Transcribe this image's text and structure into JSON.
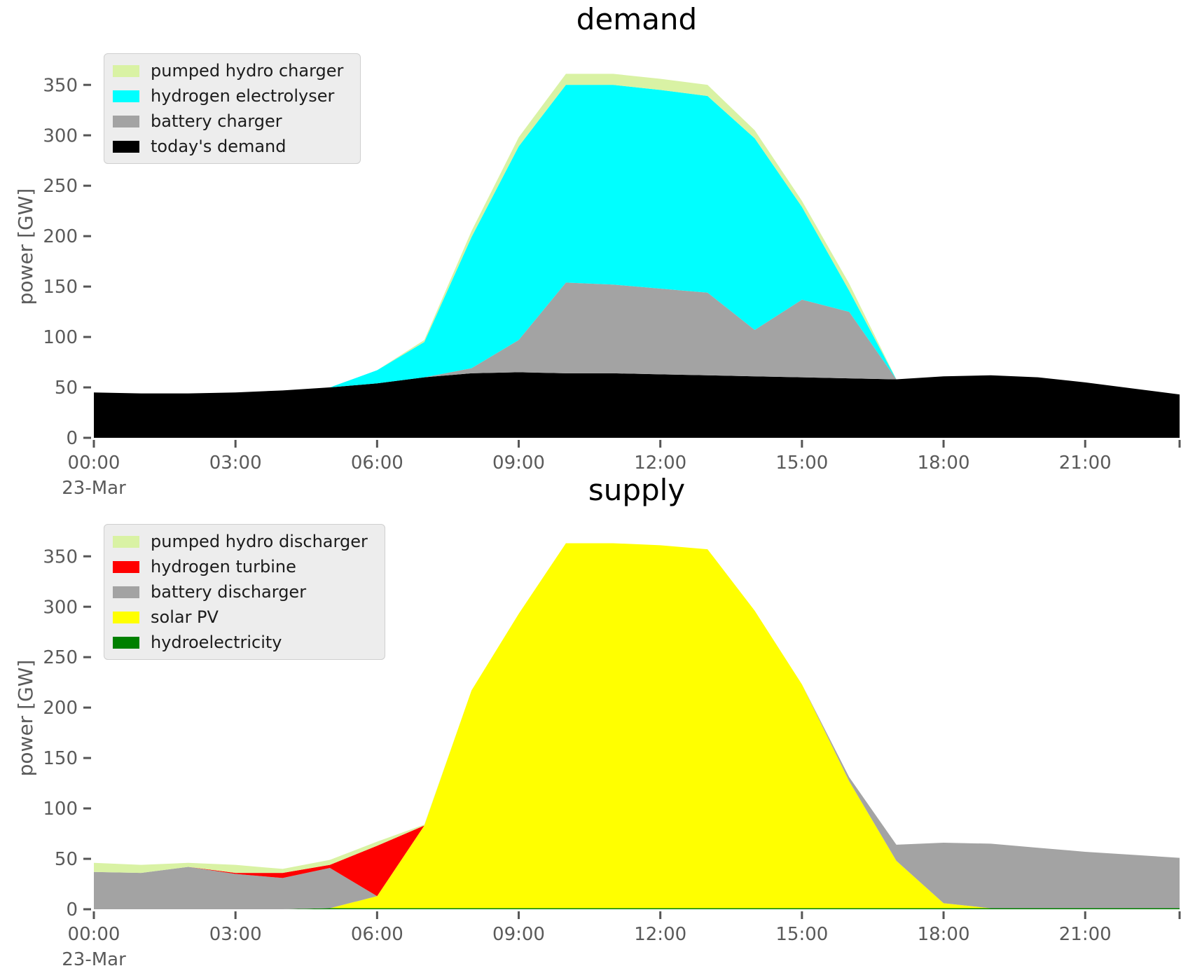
{
  "figure": {
    "background": "#ffffff",
    "text_color": "#5a5a5a",
    "title_color": "#000000"
  },
  "chart_data": [
    {
      "id": "demand",
      "type": "area",
      "title": "demand",
      "ylabel": "power [GW]",
      "x": [
        0,
        1,
        2,
        3,
        4,
        5,
        6,
        7,
        8,
        9,
        10,
        11,
        12,
        13,
        14,
        15,
        16,
        17,
        18,
        19,
        20,
        21,
        22,
        23
      ],
      "x_tick_hours": [
        0,
        3,
        6,
        9,
        12,
        15,
        18,
        21,
        23
      ],
      "x_tick_labels": [
        "00:00",
        "03:00",
        "06:00",
        "09:00",
        "12:00",
        "15:00",
        "18:00",
        "21:00",
        ""
      ],
      "x_date_label": "23-Mar",
      "y_ticks": [
        0,
        50,
        100,
        150,
        200,
        250,
        300,
        350
      ],
      "ylim": [
        0,
        380
      ],
      "grid": false,
      "legend_position": "upper left",
      "series": [
        {
          "name": "today's demand",
          "color": "#000000",
          "values": [
            45,
            44,
            44,
            45,
            47,
            50,
            54,
            60,
            64,
            65,
            64,
            64,
            63,
            62,
            61,
            60,
            59,
            58,
            61,
            62,
            60,
            55,
            49,
            43
          ]
        },
        {
          "name": "battery charger",
          "color": "#a3a3a3",
          "values": [
            0,
            0,
            0,
            0,
            0,
            0,
            0,
            0,
            5,
            32,
            90,
            88,
            85,
            82,
            46,
            77,
            66,
            0,
            0,
            0,
            0,
            0,
            0,
            0
          ]
        },
        {
          "name": "hydrogen electrolyser",
          "color": "#00ffff",
          "values": [
            0,
            0,
            0,
            0,
            0,
            0,
            13,
            35,
            130,
            192,
            196,
            198,
            197,
            195,
            190,
            92,
            21,
            0,
            0,
            0,
            0,
            0,
            0,
            0
          ]
        },
        {
          "name": "pumped hydro charger",
          "color": "#d9f2a4",
          "values": [
            0,
            0,
            0,
            0,
            0,
            0,
            0,
            2,
            6,
            9,
            11,
            11,
            11,
            11,
            8,
            6,
            7,
            0,
            0,
            0,
            0,
            0,
            0,
            0
          ]
        }
      ],
      "legend": [
        {
          "label": "pumped hydro charger",
          "color": "#d9f2a4"
        },
        {
          "label": "hydrogen electrolyser",
          "color": "#00ffff"
        },
        {
          "label": "battery charger",
          "color": "#a3a3a3"
        },
        {
          "label": "today's demand",
          "color": "#000000"
        }
      ]
    },
    {
      "id": "supply",
      "type": "area",
      "title": "supply",
      "ylabel": "power [GW]",
      "x": [
        0,
        1,
        2,
        3,
        4,
        5,
        6,
        7,
        8,
        9,
        10,
        11,
        12,
        13,
        14,
        15,
        16,
        17,
        18,
        19,
        20,
        21,
        22,
        23
      ],
      "x_tick_hours": [
        0,
        3,
        6,
        9,
        12,
        15,
        18,
        21,
        23
      ],
      "x_tick_labels": [
        "00:00",
        "03:00",
        "06:00",
        "09:00",
        "12:00",
        "15:00",
        "18:00",
        "21:00",
        ""
      ],
      "x_date_label": "23-Mar",
      "y_ticks": [
        0,
        50,
        100,
        150,
        200,
        250,
        300,
        350
      ],
      "ylim": [
        0,
        380
      ],
      "grid": false,
      "legend_position": "upper left",
      "series": [
        {
          "name": "hydroelectricity",
          "color": "#008000",
          "values": [
            0,
            0,
            0,
            0,
            0,
            1,
            1,
            1,
            1,
            1,
            1,
            1,
            1,
            1,
            1,
            1,
            1,
            1,
            1,
            1,
            1,
            1,
            1,
            1
          ]
        },
        {
          "name": "solar PV",
          "color": "#ffff00",
          "values": [
            0,
            0,
            0,
            0,
            0,
            0,
            12,
            82,
            216,
            292,
            362,
            362,
            360,
            356,
            295,
            222,
            126,
            47,
            5,
            0,
            0,
            0,
            0,
            0
          ]
        },
        {
          "name": "battery discharger",
          "color": "#a3a3a3",
          "values": [
            37,
            36,
            42,
            35,
            31,
            40,
            0,
            0,
            0,
            0,
            0,
            0,
            0,
            0,
            0,
            0,
            4,
            16,
            60,
            64,
            60,
            56,
            53,
            50
          ]
        },
        {
          "name": "hydrogen turbine",
          "color": "#ff0000",
          "values": [
            0,
            0,
            0,
            1,
            5,
            3,
            50,
            0,
            0,
            0,
            0,
            0,
            0,
            0,
            0,
            0,
            0,
            0,
            0,
            0,
            0,
            0,
            0,
            0
          ]
        },
        {
          "name": "pumped hydro discharger",
          "color": "#d9f2a4",
          "values": [
            9,
            8,
            4,
            8,
            4,
            5,
            4,
            1,
            0,
            0,
            0,
            0,
            0,
            0,
            0,
            0,
            0,
            0,
            0,
            0,
            0,
            0,
            0,
            0
          ]
        }
      ],
      "legend": [
        {
          "label": "pumped hydro discharger",
          "color": "#d9f2a4"
        },
        {
          "label": "hydrogen turbine",
          "color": "#ff0000"
        },
        {
          "label": "battery discharger",
          "color": "#a3a3a3"
        },
        {
          "label": "solar PV",
          "color": "#ffff00"
        },
        {
          "label": "hydroelectricity",
          "color": "#008000"
        }
      ]
    }
  ]
}
